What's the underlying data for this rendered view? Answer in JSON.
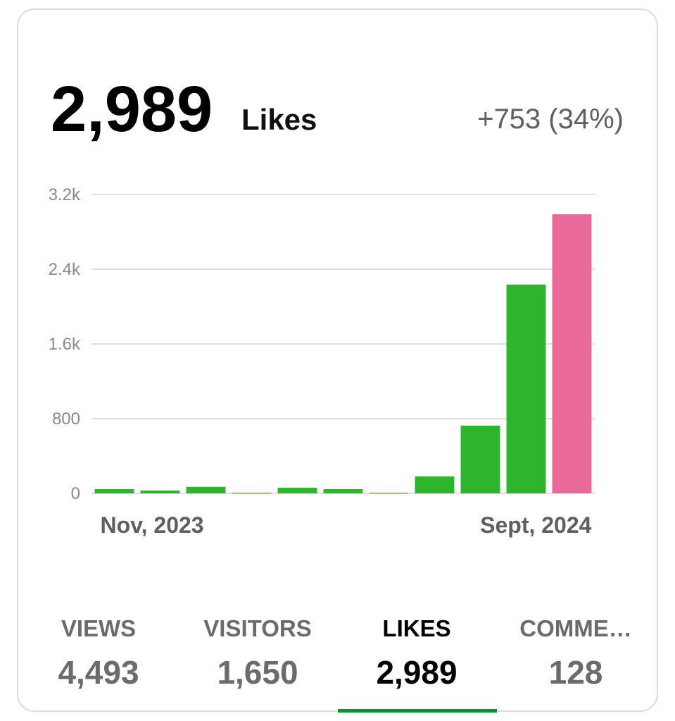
{
  "header": {
    "value": "2,989",
    "label": "Likes",
    "change": "+753 (34%)"
  },
  "chart_data": {
    "type": "bar",
    "categories": [
      "Nov, 2023",
      null,
      null,
      null,
      null,
      null,
      null,
      null,
      null,
      null,
      "Sept, 2024"
    ],
    "values": [
      45,
      30,
      70,
      5,
      60,
      45,
      5,
      181,
      725,
      2236,
      2989
    ],
    "colors": [
      "#2db52d",
      "#2db52d",
      "#2db52d",
      "#2db52d",
      "#2db52d",
      "#2db52d",
      "#2db52d",
      "#2db52d",
      "#2db52d",
      "#2db52d",
      "#e8699a"
    ],
    "ylim": [
      0,
      3200
    ],
    "yticks": [
      0,
      800,
      {
        "value": 1600,
        "label": "1.6k"
      },
      {
        "value": 2400,
        "label": "2.4k"
      },
      {
        "value": 3200,
        "label": "3.2k"
      }
    ],
    "grid": true
  },
  "tabs": [
    {
      "label": "VIEWS",
      "value": "4,493"
    },
    {
      "label": "VISITORS",
      "value": "1,650"
    },
    {
      "label": "LIKES",
      "value": "2,989"
    },
    {
      "label": "COMME…",
      "value": "128"
    }
  ]
}
